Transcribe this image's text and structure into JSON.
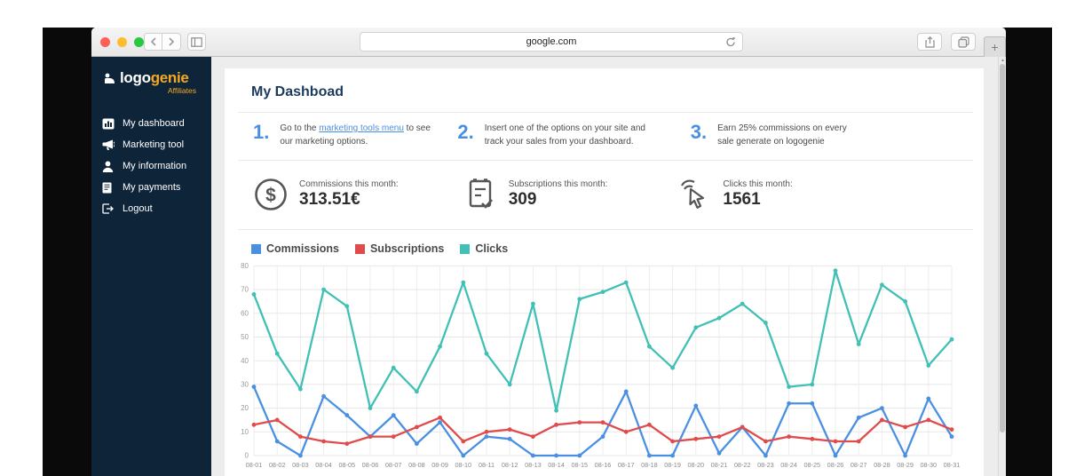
{
  "colors": {
    "traffic_red": "#ff5f57",
    "traffic_yellow": "#febc2e",
    "traffic_green": "#28c840",
    "sidebar_navy": "#0e2439",
    "brand_orange": "#f7a821",
    "accent_blue": "#4a90e2"
  },
  "browser": {
    "url": "google.com",
    "new_tab_label": "+"
  },
  "sidebar": {
    "logo": {
      "part1": "logo",
      "part2": "genie",
      "subtitle": "Affiliates"
    },
    "items": [
      {
        "label": "My dashboard",
        "icon": "dashboard-icon"
      },
      {
        "label": "Marketing tool",
        "icon": "megaphone-icon"
      },
      {
        "label": "My information",
        "icon": "person-icon"
      },
      {
        "label": "My payments",
        "icon": "invoice-icon"
      },
      {
        "label": "Logout",
        "icon": "logout-icon"
      }
    ]
  },
  "main": {
    "title": "My Dashboad",
    "steps": [
      {
        "number": "1.",
        "text_before": "Go to the ",
        "link": "marketing tools menu",
        "text_after": " to see our marketing options."
      },
      {
        "number": "2.",
        "text": "Insert one of the options on your site and track your sales from your dashboard."
      },
      {
        "number": "3.",
        "text": "Earn 25% commissions on every sale generate on logogenie"
      }
    ],
    "stats": [
      {
        "label": "Commissions this month:",
        "value": "313.51€",
        "icon": "dollar-circle-icon"
      },
      {
        "label": "Subscriptions this month:",
        "value": "309",
        "icon": "clipboard-check-icon"
      },
      {
        "label": "Clicks this month:",
        "value": "1561",
        "icon": "cursor-click-icon"
      }
    ]
  },
  "chart_data": {
    "type": "line",
    "title": "",
    "xlabel": "",
    "ylabel": "",
    "ylim": [
      0,
      80
    ],
    "yticks": [
      0,
      10,
      20,
      30,
      40,
      50,
      60,
      70,
      80
    ],
    "grid": true,
    "legend_position": "top-left",
    "x": [
      "08-01",
      "08-02",
      "08-03",
      "08-04",
      "08-05",
      "08-06",
      "08-07",
      "08-08",
      "08-09",
      "08-10",
      "08-11",
      "08-12",
      "08-13",
      "08-14",
      "08-15",
      "08-16",
      "08-17",
      "08-18",
      "08-19",
      "08-20",
      "08-21",
      "08-22",
      "08-23",
      "08-24",
      "08-25",
      "08-26",
      "08-27",
      "08-28",
      "08-29",
      "08-30",
      "08-31"
    ],
    "series": [
      {
        "name": "Commissions",
        "color": "#4a90e2",
        "values": [
          29,
          6,
          0,
          25,
          17,
          8,
          17,
          5,
          14,
          0,
          8,
          7,
          0,
          0,
          0,
          8,
          27,
          0,
          0,
          21,
          1,
          12,
          0,
          22,
          22,
          0,
          16,
          20,
          0,
          24,
          8
        ]
      },
      {
        "name": "Subscriptions",
        "color": "#e04b4b",
        "values": [
          13,
          15,
          8,
          6,
          5,
          8,
          8,
          12,
          16,
          6,
          10,
          11,
          8,
          13,
          14,
          14,
          10,
          13,
          6,
          7,
          8,
          12,
          6,
          8,
          7,
          6,
          6,
          15,
          12,
          15,
          11
        ]
      },
      {
        "name": "Clicks",
        "color": "#41c0b5",
        "values": [
          68,
          43,
          28,
          70,
          63,
          20,
          37,
          27,
          46,
          73,
          43,
          30,
          64,
          19,
          66,
          69,
          73,
          46,
          37,
          54,
          58,
          64,
          56,
          29,
          30,
          78,
          47,
          72,
          65,
          38,
          49
        ]
      }
    ]
  }
}
